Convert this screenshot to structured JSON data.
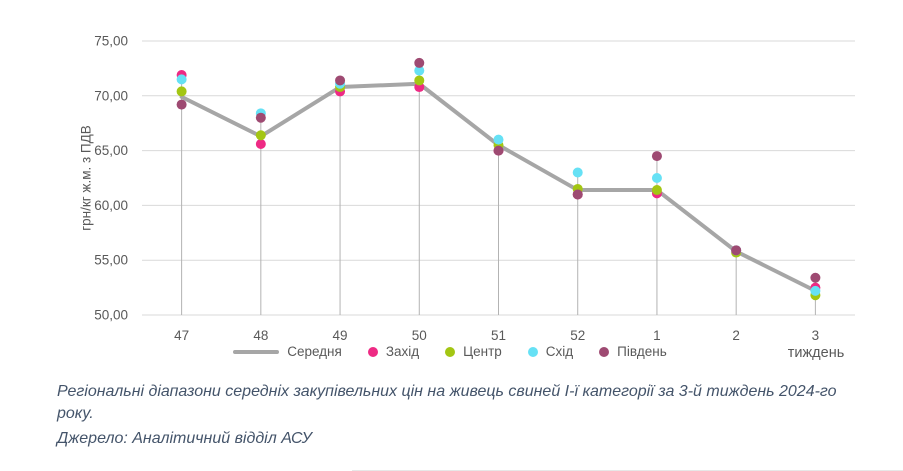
{
  "chart_data": {
    "type": "line",
    "categories": [
      "47",
      "48",
      "49",
      "50",
      "51",
      "52",
      "1",
      "2",
      "3"
    ],
    "series": [
      {
        "name": "Середня",
        "marker": "line",
        "color": "#a6a6a6",
        "values": [
          69.9,
          66.3,
          70.8,
          71.1,
          65.5,
          61.4,
          61.4,
          55.8,
          52.2
        ]
      },
      {
        "name": "Захід",
        "marker": "dot",
        "color": "#ee2a84",
        "values": [
          71.9,
          65.6,
          70.4,
          70.8,
          65.0,
          61.0,
          61.1,
          55.9,
          52.5
        ]
      },
      {
        "name": "Центр",
        "marker": "dot",
        "color": "#a3c613",
        "values": [
          70.4,
          66.4,
          70.8,
          71.4,
          65.5,
          61.5,
          61.4,
          55.7,
          51.8
        ]
      },
      {
        "name": "Схід",
        "marker": "dot",
        "color": "#66e1f5",
        "values": [
          71.5,
          68.4,
          71.1,
          72.3,
          66.0,
          63.0,
          62.5,
          55.9,
          52.2
        ]
      },
      {
        "name": "Південь",
        "marker": "dot",
        "color": "#9e4a72",
        "values": [
          69.2,
          68.0,
          71.4,
          73.0,
          65.0,
          61.0,
          64.5,
          55.9,
          53.4
        ]
      }
    ],
    "ylabel": "грн/кг ж.м. з ПДВ",
    "xlabel": "тиждень",
    "ylim": [
      50,
      75
    ],
    "yticks": [
      "50,00",
      "55,00",
      "60,00",
      "65,00",
      "70,00",
      "75,00"
    ],
    "grid": true,
    "legend_position": "bottom"
  },
  "colors": {
    "axis_text": "#595959",
    "gridline": "#d9d9d9",
    "dropline": "#b3b3b3",
    "caption_text": "#44546a"
  },
  "caption": "Регіональні діапазони середніх закупівельних цін на живець свиней І-ї категорії за 3-й тиждень 2024-го року.",
  "source": "Джерело: Аналітичний відділ АСУ"
}
